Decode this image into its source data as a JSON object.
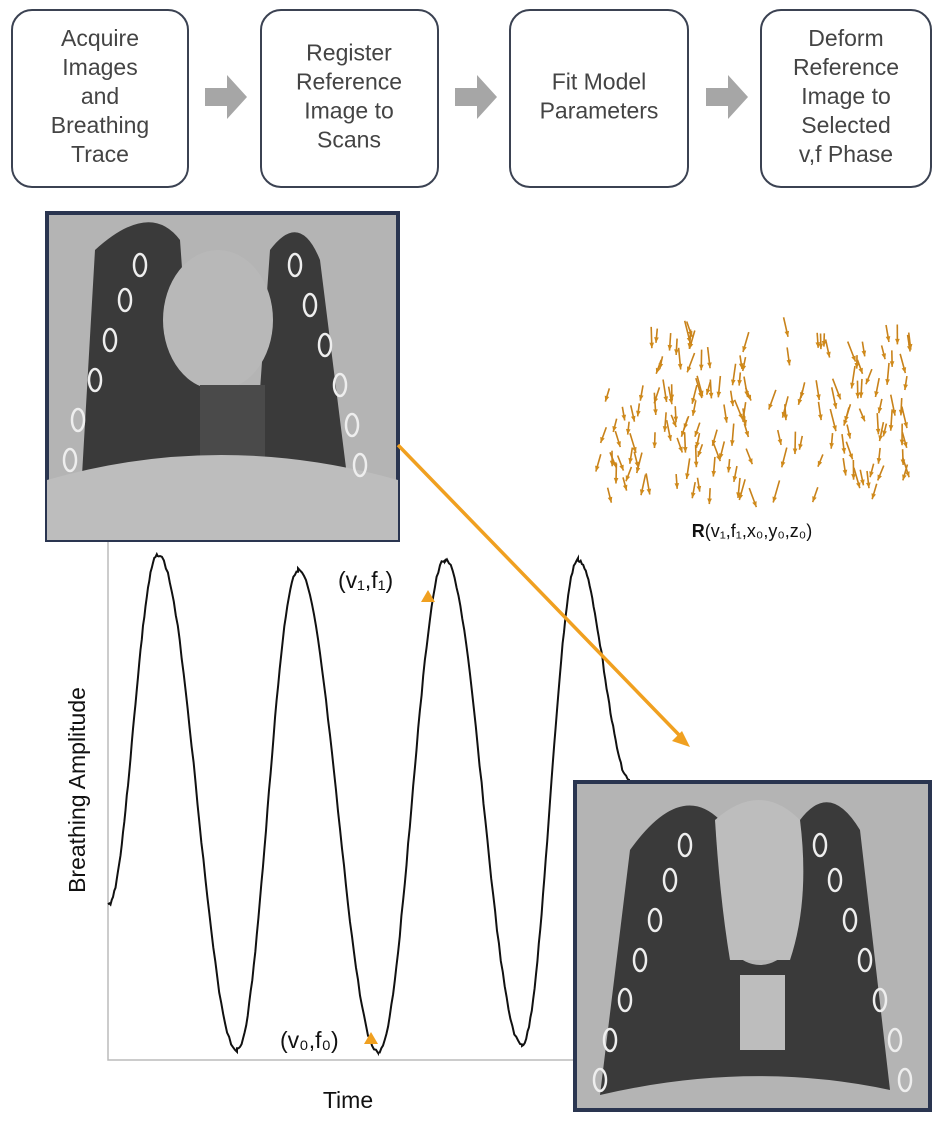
{
  "steps": [
    {
      "lines": [
        "Acquire",
        "Images",
        "and",
        "Breathing",
        "Trace"
      ]
    },
    {
      "lines": [
        "Register",
        "Reference",
        "Image to",
        "Scans"
      ]
    },
    {
      "lines": [
        "Fit Model",
        "Parameters"
      ]
    },
    {
      "lines": [
        "Deform",
        "Reference",
        "Image to",
        "Selected",
        "v,f Phase"
      ]
    }
  ],
  "vector_label": {
    "bold": "R",
    "rest": "(v₁,f₁,x₀,y₀,z₀)"
  },
  "plot": {
    "y_label": "Breathing Amplitude",
    "x_label": "Time",
    "points": [
      "(v₁,f₁)",
      "(v₀,f₀)"
    ]
  }
}
